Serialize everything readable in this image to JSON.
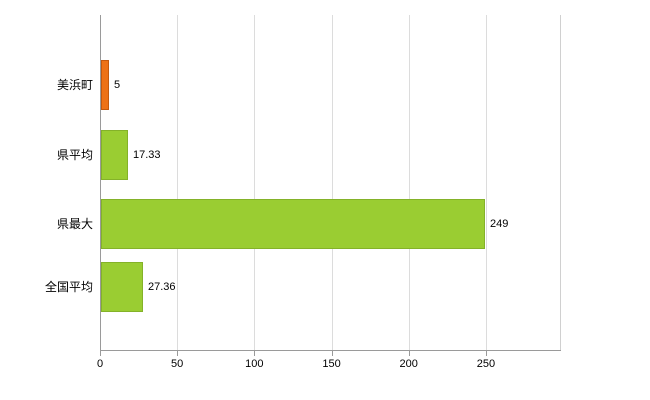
{
  "chart_data": {
    "type": "bar",
    "orientation": "horizontal",
    "title": "",
    "xlabel": "",
    "ylabel": "",
    "categories": [
      "美浜町",
      "県平均",
      "県最大",
      "全国平均"
    ],
    "values": [
      5,
      17.33,
      249,
      27.36
    ],
    "value_labels": [
      "5",
      "17.33",
      "249",
      "27.36"
    ],
    "bar_colors": [
      "#ed7217",
      "#9acd32",
      "#9acd32",
      "#9acd32"
    ],
    "bar_border_colors": [
      "#c4590e",
      "#84b229",
      "#84b229",
      "#84b229"
    ],
    "x_ticks": [
      0,
      50,
      100,
      150,
      200,
      250
    ],
    "x_tick_labels": [
      "0",
      "50",
      "100",
      "150",
      "200",
      "250"
    ],
    "xlim": [
      0,
      298
    ],
    "grid": true,
    "legend": "none",
    "background_color": "#ffffff",
    "gridline_color": "#dcdcdc",
    "axis_color": "#9a9a9a",
    "text_color": "#000000"
  }
}
